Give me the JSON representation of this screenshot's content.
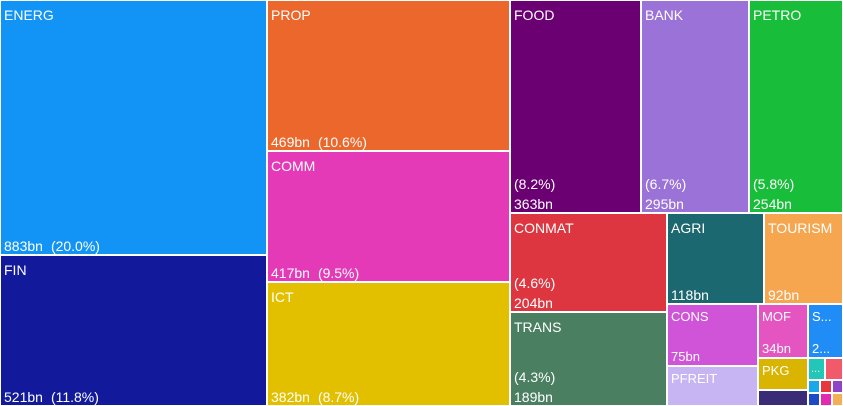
{
  "chart_data": {
    "type": "treemap",
    "title": "",
    "value_unit": "bn",
    "items": [
      {
        "name": "ENERG",
        "label": "ENERG",
        "value_label": "883bn",
        "value": 883,
        "pct_label": "(20.0%)",
        "pct": 20.0,
        "color": "#1294F6"
      },
      {
        "name": "FIN",
        "label": "FIN",
        "value_label": "521bn",
        "value": 521,
        "pct_label": "(11.8%)",
        "pct": 11.8,
        "color": "#12199B"
      },
      {
        "name": "PROP",
        "label": "PROP",
        "value_label": "469bn",
        "value": 469,
        "pct_label": "(10.6%)",
        "pct": 10.6,
        "color": "#EC672C"
      },
      {
        "name": "COMM",
        "label": "COMM",
        "value_label": "417bn",
        "value": 417,
        "pct_label": "(9.5%)",
        "pct": 9.5,
        "color": "#E53AB8"
      },
      {
        "name": "ICT",
        "label": "ICT",
        "value_label": "382bn",
        "value": 382,
        "pct_label": "(8.7%)",
        "pct": 8.7,
        "color": "#E2C000"
      },
      {
        "name": "FOOD",
        "label": "FOOD",
        "value_label": "363bn",
        "value": 363,
        "pct_label": "(8.2%)",
        "pct": 8.2,
        "color": "#6B0073"
      },
      {
        "name": "BANK",
        "label": "BANK",
        "value_label": "295bn",
        "value": 295,
        "pct_label": "(6.7%)",
        "pct": 6.7,
        "color": "#9B72D8"
      },
      {
        "name": "PETRO",
        "label": "PETRO",
        "value_label": "254bn",
        "value": 254,
        "pct_label": "(5.8%)",
        "pct": 5.8,
        "color": "#18BD3A"
      },
      {
        "name": "CONMAT",
        "label": "CONMAT",
        "value_label": "204bn",
        "value": 204,
        "pct_label": "(4.6%)",
        "pct": 4.6,
        "color": "#DD3640"
      },
      {
        "name": "TRANS",
        "label": "TRANS",
        "value_label": "189bn",
        "value": 189,
        "pct_label": "(4.3%)",
        "pct": 4.3,
        "color": "#4B7F62"
      },
      {
        "name": "AGRI",
        "label": "AGRI",
        "value_label": "118bn",
        "value": 118,
        "pct_label": "",
        "pct": null,
        "color": "#1C6871"
      },
      {
        "name": "TOURISM",
        "label": "TOURISM",
        "value_label": "92bn",
        "value": 92,
        "pct_label": "",
        "pct": null,
        "color": "#F7A650"
      },
      {
        "name": "CONS",
        "label": "CONS",
        "value_label": "75bn",
        "value": 75,
        "pct_label": "",
        "pct": null,
        "color": "#CF54D8"
      },
      {
        "name": "MOF",
        "label": "MOF",
        "value_label": "34bn",
        "value": 34,
        "pct_label": "",
        "pct": null,
        "color": "#E455C2"
      },
      {
        "name": "S",
        "label": "S...",
        "value_label": "2...",
        "value": null,
        "pct_label": "",
        "pct": null,
        "color": "#1F8DF5"
      },
      {
        "name": "PFREIT",
        "label": "PFREIT",
        "value_label": "",
        "value": null,
        "pct_label": "",
        "pct": null,
        "color": "#C7B4F3"
      },
      {
        "name": "PKG",
        "label": "PKG",
        "value_label": "",
        "value": null,
        "pct_label": "",
        "pct": null,
        "color": "#D9B400"
      },
      {
        "name": "small-1",
        "label": "...",
        "value_label": "",
        "value": null,
        "pct_label": "",
        "pct": null,
        "color": "#22C7B8"
      },
      {
        "name": "small-2",
        "label": "",
        "value_label": "",
        "value": null,
        "pct_label": "",
        "pct": null,
        "color": "#F05A6B"
      },
      {
        "name": "small-3",
        "label": "",
        "value_label": "",
        "value": null,
        "pct_label": "",
        "pct": null,
        "color": "#3A2C77"
      },
      {
        "name": "small-4",
        "label": "",
        "value_label": "",
        "value": null,
        "pct_label": "",
        "pct": null,
        "color": "#19A9E8"
      },
      {
        "name": "small-5",
        "label": "",
        "value_label": "",
        "value": null,
        "pct_label": "",
        "pct": null,
        "color": "#E7363D"
      },
      {
        "name": "small-6",
        "label": "",
        "value_label": "",
        "value": null,
        "pct_label": "",
        "pct": null,
        "color": "#8E44C9"
      },
      {
        "name": "small-7",
        "label": "",
        "value_label": "",
        "value": null,
        "pct_label": "",
        "pct": null,
        "color": "#1E4AC7"
      },
      {
        "name": "small-8",
        "label": "",
        "value_label": "",
        "value": null,
        "pct_label": "",
        "pct": null,
        "color": "#E22BB0"
      },
      {
        "name": "small-9",
        "label": "",
        "value_label": "",
        "value": null,
        "pct_label": "",
        "pct": null,
        "color": "#F4AE54"
      }
    ]
  }
}
